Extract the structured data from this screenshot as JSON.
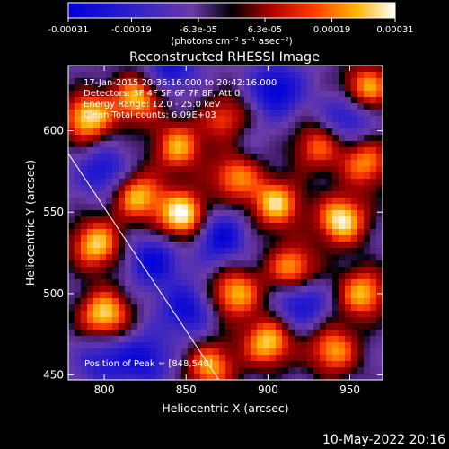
{
  "chart_data": {
    "type": "heatmap",
    "title": "Reconstructed RHESSI Image",
    "xlabel": "Heliocentric X (arcsec)",
    "ylabel": "Heliocentric Y (arcsec)",
    "xlim": [
      778,
      970
    ],
    "ylim": [
      447,
      640
    ],
    "x_ticks": [
      800,
      850,
      900,
      950
    ],
    "y_ticks": [
      450,
      500,
      550,
      600
    ],
    "x_tick_labels": [
      "800",
      "850",
      "900",
      "950"
    ],
    "y_tick_labels": [
      "450",
      "500",
      "550",
      "600"
    ],
    "colorbar": {
      "range": [
        -0.00031,
        0.00031
      ],
      "ticks": [
        -0.00031,
        -0.00019,
        -6.3e-05,
        6.3e-05,
        0.00019,
        0.00031
      ],
      "tick_labels": [
        "-0.00031",
        "-0.00019",
        "-6.3e-05",
        "6.3e-05",
        "0.00019",
        "0.00031"
      ],
      "unit_label": "(photons cm⁻² s⁻¹ asec⁻²)"
    },
    "annotations": [
      "17-Jan-2015 20:36:16.000 to 20:42:16.000",
      "Detectors: 3F 4F 5F 6F 7F 8F, Att 0",
      "Energy Range: 12.0 - 25.0 keV",
      "Clean    Total counts: 6.09E+03"
    ],
    "peak_label": "Position of Peak = [848,548]",
    "peak": [
      848,
      548
    ],
    "limb_line": [
      [
        778,
        586
      ],
      [
        870,
        447
      ]
    ],
    "hotspots": [
      {
        "x": 848,
        "y": 548,
        "v": 1.0
      },
      {
        "x": 876,
        "y": 605,
        "v": 0.95
      },
      {
        "x": 790,
        "y": 608,
        "v": 0.9
      },
      {
        "x": 820,
        "y": 620,
        "v": 0.8
      },
      {
        "x": 845,
        "y": 590,
        "v": 0.75
      },
      {
        "x": 795,
        "y": 530,
        "v": 0.85
      },
      {
        "x": 800,
        "y": 487,
        "v": 0.9
      },
      {
        "x": 880,
        "y": 500,
        "v": 0.8
      },
      {
        "x": 905,
        "y": 555,
        "v": 0.85
      },
      {
        "x": 915,
        "y": 515,
        "v": 0.8
      },
      {
        "x": 945,
        "y": 545,
        "v": 0.95
      },
      {
        "x": 960,
        "y": 625,
        "v": 0.85
      },
      {
        "x": 958,
        "y": 500,
        "v": 0.8
      },
      {
        "x": 865,
        "y": 455,
        "v": 0.75
      },
      {
        "x": 900,
        "y": 470,
        "v": 0.85
      },
      {
        "x": 940,
        "y": 465,
        "v": 0.75
      },
      {
        "x": 820,
        "y": 560,
        "v": 0.8
      },
      {
        "x": 880,
        "y": 572,
        "v": 0.7
      },
      {
        "x": 930,
        "y": 590,
        "v": 0.6
      },
      {
        "x": 960,
        "y": 580,
        "v": 0.7
      }
    ],
    "coldspots": [
      {
        "x": 905,
        "y": 625,
        "v": -0.9
      },
      {
        "x": 870,
        "y": 535,
        "v": -0.85
      },
      {
        "x": 880,
        "y": 600,
        "v": -0.7
      },
      {
        "x": 920,
        "y": 495,
        "v": -0.8
      },
      {
        "x": 850,
        "y": 490,
        "v": -0.75
      },
      {
        "x": 830,
        "y": 520,
        "v": -0.8
      },
      {
        "x": 800,
        "y": 575,
        "v": -0.7
      },
      {
        "x": 825,
        "y": 460,
        "v": -0.7
      },
      {
        "x": 950,
        "y": 610,
        "v": -0.8
      },
      {
        "x": 800,
        "y": 460,
        "v": -0.6
      },
      {
        "x": 840,
        "y": 638,
        "v": -0.7
      }
    ]
  },
  "timestamp": "10-May-2022 20:16",
  "colors": {
    "background": "#000000",
    "limb": "#ffffff"
  }
}
